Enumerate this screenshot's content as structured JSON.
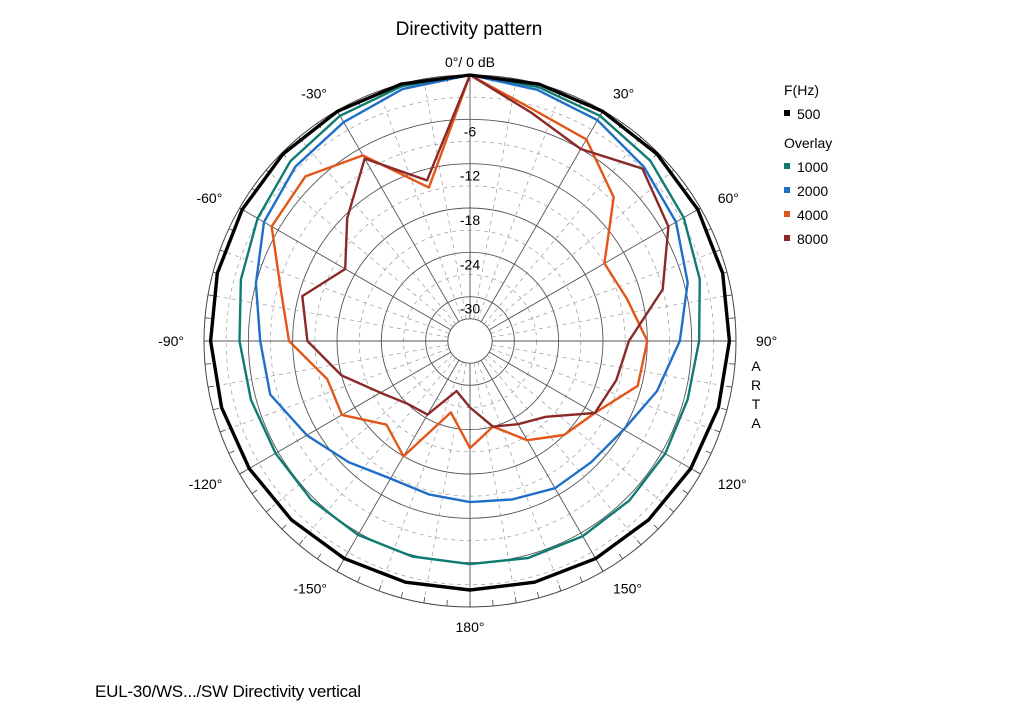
{
  "caption": "EUL-30/WS.../SW  Directivity vertical",
  "chart_data": {
    "type": "polar",
    "title": "Directivity pattern",
    "top_label": "0°/ 0 dB",
    "brand": "ARTA",
    "radial_min_db": -36,
    "radial_max_db": 0,
    "ring_ticks": [
      {
        "db": -6,
        "label": "-6"
      },
      {
        "db": -12,
        "label": "-12"
      },
      {
        "db": -18,
        "label": "-18"
      },
      {
        "db": -24,
        "label": "-24"
      },
      {
        "db": -30,
        "label": "-30"
      }
    ],
    "angle_ticks": [
      {
        "deg": 30,
        "label": "30°"
      },
      {
        "deg": 60,
        "label": "60°"
      },
      {
        "deg": 90,
        "label": "90°"
      },
      {
        "deg": 120,
        "label": "120°"
      },
      {
        "deg": 150,
        "label": "150°"
      },
      {
        "deg": 180,
        "label": "180°"
      },
      {
        "deg": -150,
        "label": "-150°"
      },
      {
        "deg": -120,
        "label": "-120°"
      },
      {
        "deg": -90,
        "label": "-90°"
      },
      {
        "deg": -60,
        "label": "-60°"
      },
      {
        "deg": -30,
        "label": "-30°"
      }
    ],
    "legend": {
      "header": "F(Hz)",
      "overlay_header": "Overlay",
      "placement": "right"
    },
    "angles_deg": [
      0,
      15,
      30,
      45,
      60,
      75,
      90,
      105,
      120,
      135,
      150,
      165,
      180,
      -165,
      -150,
      -135,
      -120,
      -105,
      -90,
      -75,
      -60,
      -45,
      -30,
      -15
    ],
    "series": [
      {
        "name": "500",
        "group": "main",
        "color": "#000000",
        "values": [
          0,
          0,
          -0.1,
          -0.2,
          -0.4,
          -0.6,
          -0.9,
          -1.2,
          -1.5,
          -1.8,
          -2.0,
          -2.2,
          -2.3,
          -2.2,
          -2.0,
          -1.8,
          -1.5,
          -1.2,
          -0.9,
          -0.6,
          -0.4,
          -0.2,
          -0.1,
          0
        ]
      },
      {
        "name": "1000",
        "group": "overlay",
        "color": "#0f7b73",
        "values": [
          0,
          -0.4,
          -0.8,
          -1.5,
          -2.6,
          -3.8,
          -5.0,
          -5.5,
          -5.5,
          -5.5,
          -5.5,
          -5.6,
          -5.8,
          -5.8,
          -5.7,
          -5.6,
          -5.6,
          -5.3,
          -4.8,
          -3.9,
          -2.8,
          -1.6,
          -0.8,
          -0.3
        ]
      },
      {
        "name": "2000",
        "group": "overlay",
        "color": "#1f6fc8",
        "values": [
          0,
          -0.8,
          -1.5,
          -2.7,
          -3.8,
          -5.5,
          -7.6,
          -9.8,
          -12.0,
          -12.8,
          -13.0,
          -13.8,
          -14.2,
          -14.5,
          -14.5,
          -12.8,
          -10.5,
          -8.0,
          -7.6,
          -6.0,
          -3.8,
          -2.6,
          -1.8,
          -0.7
        ]
      },
      {
        "name": "4000",
        "group": "overlay",
        "color": "#e2561a",
        "values": [
          0,
          -3.5,
          -4.5,
          -8.5,
          -15.0,
          -14.0,
          -12.0,
          -12.5,
          -16.5,
          -18.0,
          -20.5,
          -24.0,
          -21.5,
          -26.0,
          -18.0,
          -20.0,
          -16.0,
          -16.0,
          -11.5,
          -9.5,
          -5.0,
          -4.5,
          -7.0,
          -14.5
        ]
      },
      {
        "name": "8000",
        "group": "overlay",
        "color": "#8a2a28",
        "values": [
          0,
          -4.0,
          -6.0,
          -3.0,
          -5.0,
          -9.0,
          -14.5,
          -15.5,
          -16.5,
          -21.5,
          -23.0,
          -24.0,
          -27.0,
          -29.0,
          -24.5,
          -24.0,
          -22.0,
          -18.0,
          -14.0,
          -12.5,
          -16.5,
          -12.5,
          -7.5,
          -13.5
        ]
      }
    ]
  }
}
